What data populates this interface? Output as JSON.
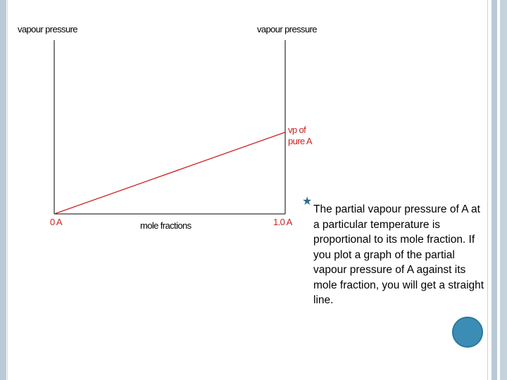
{
  "chart_data": {
    "type": "line",
    "left_axis_label": "vapour pressure",
    "right_axis_label": "vapour pressure",
    "xlabel": "mole fractions",
    "x_ticks": [
      "0 A",
      "1.0 A"
    ],
    "series_label": "vp of\npure A",
    "x": [
      0,
      1
    ],
    "y": [
      0,
      0.47
    ],
    "ylim": [
      0,
      1
    ],
    "grid": false,
    "colors": {
      "axes": "#000000",
      "line": "#cc2222",
      "text": "#cc2222",
      "axis_title": "#000000"
    }
  },
  "bullet": {
    "text": "The partial vapour pressure of A at a particular temperature is proportional to its mole fraction. If you plot a graph of the partial vapour pressure of A against its mole fraction, you will get a straight line."
  },
  "decor": {
    "circle_color": "#3b8db5",
    "bullet_glyph": "star"
  }
}
